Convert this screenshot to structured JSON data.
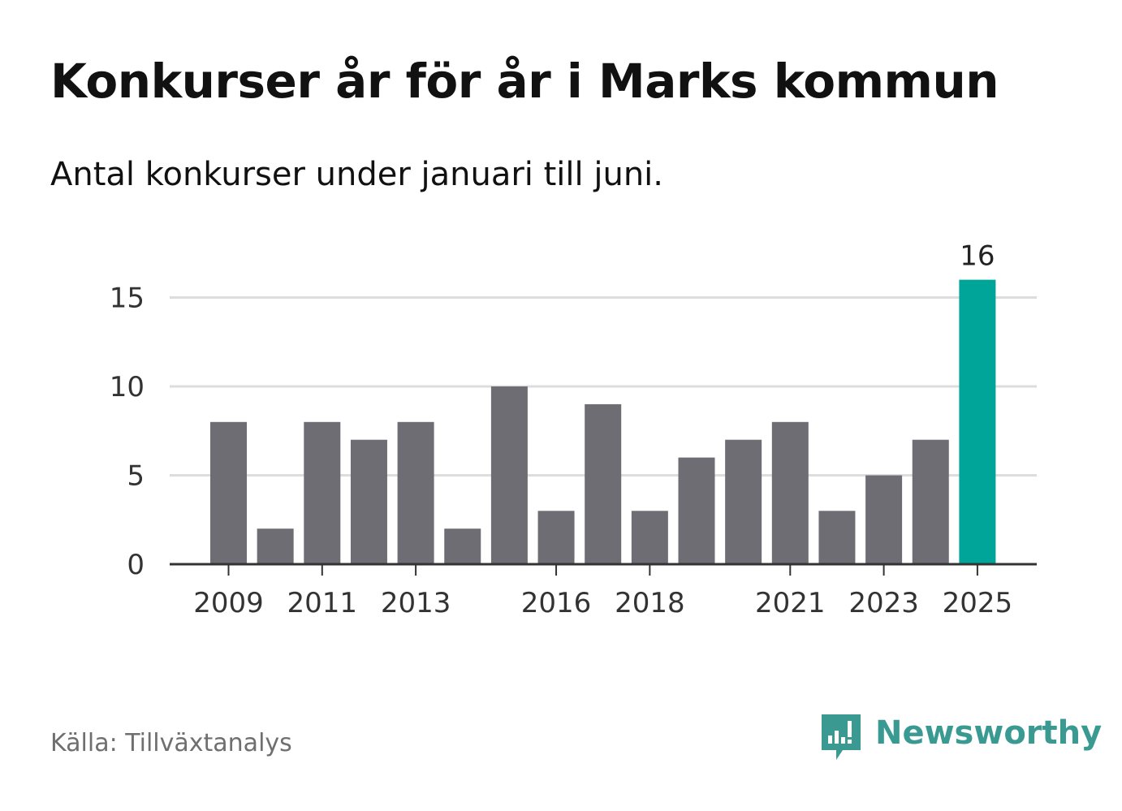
{
  "title": "Konkurser år för år i Marks kommun",
  "subtitle": "Antal konkurser under januari till juni.",
  "source": "Källa: Tillväxtanalys",
  "brand": {
    "name": "Newsworthy",
    "icon": "newsworthy-logo-icon",
    "color": "#3a9a92"
  },
  "colors": {
    "bar": "#6e6d73",
    "highlight": "#00a59a",
    "grid": "#dddddd",
    "axis": "#333333"
  },
  "chart_data": {
    "type": "bar",
    "title": "Konkurser år för år i Marks kommun",
    "subtitle": "Antal konkurser under januari till juni.",
    "categories": [
      "2009",
      "2010",
      "2011",
      "2012",
      "2013",
      "2014",
      "2015",
      "2016",
      "2017",
      "2018",
      "2019",
      "2020",
      "2021",
      "2022",
      "2023",
      "2024",
      "2025"
    ],
    "values": [
      8,
      2,
      8,
      7,
      8,
      2,
      10,
      3,
      9,
      3,
      6,
      7,
      8,
      3,
      5,
      7,
      16
    ],
    "x_tick_labels": [
      "2009",
      "2011",
      "2013",
      "2016",
      "2018",
      "2021",
      "2023",
      "2025"
    ],
    "y_ticks": [
      0,
      5,
      10,
      15
    ],
    "ylim": [
      0,
      16
    ],
    "highlight_category": "2025",
    "data_labels": [
      {
        "category": "2025",
        "text": "16"
      }
    ],
    "xlabel": "",
    "ylabel": "",
    "grid": "horizontal"
  }
}
